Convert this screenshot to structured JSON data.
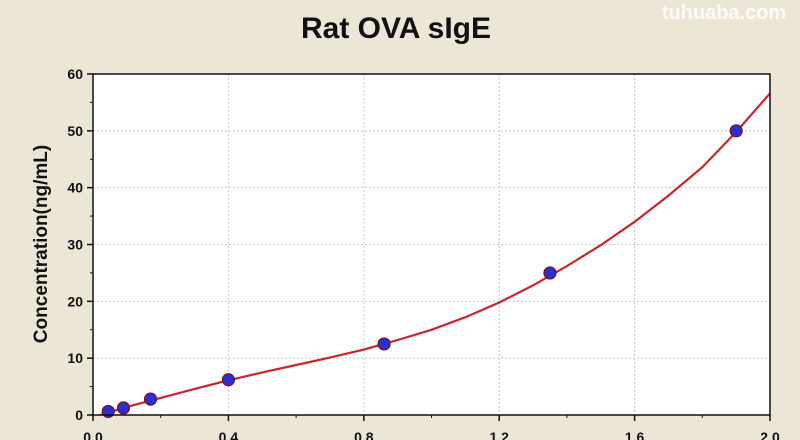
{
  "watermark": "tuhuaba.com",
  "chart_data": {
    "type": "scatter",
    "title": "Rat OVA sIgE",
    "xlabel": "",
    "ylabel": "Concentration(ng/mL)",
    "xlim": [
      0,
      2.0
    ],
    "ylim": [
      0,
      60
    ],
    "xticks": [
      0.0,
      0.4,
      0.8,
      1.2,
      1.6,
      2.0
    ],
    "xtick_labels": [
      "0.0",
      "0.4",
      "0.8",
      "1.2",
      "1.6",
      "2.0"
    ],
    "yticks": [
      0,
      10,
      20,
      30,
      40,
      50,
      60
    ],
    "ytick_labels": [
      "0",
      "10",
      "20",
      "30",
      "40",
      "50",
      "60"
    ],
    "grid": true,
    "points": [
      {
        "x": 0.045,
        "y": 0.625
      },
      {
        "x": 0.09,
        "y": 1.25
      },
      {
        "x": 0.17,
        "y": 2.8
      },
      {
        "x": 0.4,
        "y": 6.2
      },
      {
        "x": 0.86,
        "y": 12.5
      },
      {
        "x": 1.35,
        "y": 25
      },
      {
        "x": 1.9,
        "y": 50
      }
    ],
    "fit_curve": {
      "x": [
        0.0,
        0.1,
        0.2,
        0.3,
        0.4,
        0.5,
        0.6,
        0.7,
        0.8,
        0.9,
        1.0,
        1.1,
        1.2,
        1.3,
        1.4,
        1.5,
        1.6,
        1.7,
        1.8,
        1.9,
        2.0
      ],
      "y": [
        -0.4,
        1.4,
        3.0,
        4.6,
        6.1,
        7.5,
        8.8,
        10.1,
        11.5,
        13.2,
        15.0,
        17.2,
        19.8,
        22.8,
        26.2,
        29.9,
        34.0,
        38.6,
        43.6,
        49.8,
        56.6
      ]
    },
    "colors": {
      "point": "#2a2fd1",
      "point_edge": "#7a1020",
      "curve": "#c8262c",
      "grid": "#c8c8c8",
      "plot_bg": "#ffffff",
      "page_bg": "#ebe6d6"
    }
  }
}
